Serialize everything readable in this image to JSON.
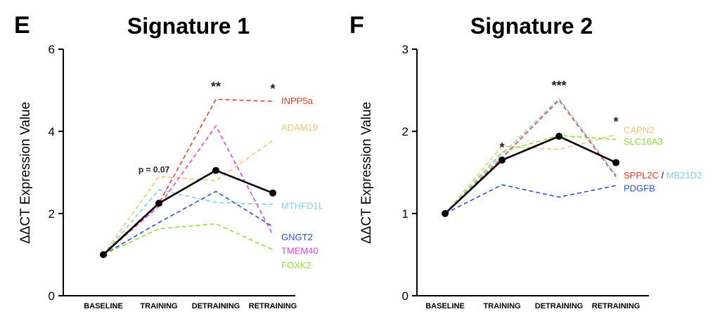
{
  "chart_data": [
    {
      "panel": "E",
      "type": "line",
      "title": "Signature 1",
      "ylabel": "ΔΔCT Expression Value",
      "xlabel": "",
      "categories": [
        "BASELINE",
        "TRAINING",
        "DETRAINING",
        "RETRAINING"
      ],
      "ylim": [
        0,
        6
      ],
      "yticks": [
        "0",
        "2",
        "4",
        "6"
      ],
      "grid": false,
      "series": [
        {
          "name": "INPP5a",
          "color": "#e8402a",
          "style": "dashed",
          "values": [
            1,
            2.25,
            4.78,
            4.73
          ]
        },
        {
          "name": "ADAM19",
          "color": "#f5c27a",
          "style": "dashed",
          "values": [
            1,
            2.9,
            2.8,
            3.78
          ]
        },
        {
          "name": "MTHFD1L",
          "color": "#7fcfef",
          "style": "dashed",
          "values": [
            1,
            2.58,
            2.27,
            2.22
          ]
        },
        {
          "name": "GNGT2",
          "color": "#2b4fd1",
          "style": "dashed",
          "values": [
            1,
            1.78,
            2.54,
            1.68
          ]
        },
        {
          "name": "TMEM40",
          "color": "#ee3fd0",
          "style": "dashed",
          "values": [
            1,
            2.18,
            4.13,
            1.48
          ]
        },
        {
          "name": "FOXK2",
          "color": "#8fe03a",
          "style": "dashed",
          "values": [
            1,
            1.63,
            1.75,
            1.12
          ]
        },
        {
          "name": "",
          "color": "#000000",
          "style": "solid",
          "markers": true,
          "values": [
            1,
            2.25,
            3.05,
            2.5
          ]
        }
      ],
      "series_labels": [
        {
          "text": "INPP5a",
          "color": "#e8402a",
          "y": 4.75
        },
        {
          "text": "ADAM19",
          "color": "#f5c27a",
          "y": 4.1
        },
        {
          "text": "MTHFD1L",
          "color": "#7fcfef",
          "y": 2.2
        },
        {
          "text": "GNGT2",
          "color": "#2b4fd1",
          "y": 1.44
        },
        {
          "text": "TMEM40",
          "color": "#ee3fd0",
          "y": 1.1
        },
        {
          "text": "FOXK2",
          "color": "#8fe03a",
          "y": 0.75
        }
      ],
      "annotations": [
        {
          "text": "p = 0.07",
          "category": "TRAINING",
          "y": 2.25,
          "kind": "note"
        },
        {
          "text": "**",
          "category": "DETRAINING",
          "y": 4.78,
          "kind": "sig"
        },
        {
          "text": "*",
          "category": "RETRAINING",
          "y": 4.73,
          "kind": "sig"
        }
      ]
    },
    {
      "panel": "F",
      "type": "line",
      "title": "Signature 2",
      "ylabel": "ΔΔCT Expression Value",
      "xlabel": "",
      "categories": [
        "BASELINE",
        "TRAINING",
        "DETRAINING",
        "RETRAINING"
      ],
      "ylim": [
        0,
        3
      ],
      "yticks": [
        "0",
        "1",
        "2",
        "3"
      ],
      "grid": false,
      "series": [
        {
          "name": "CAPN2",
          "color": "#f5c27a",
          "style": "dashed",
          "values": [
            1,
            1.82,
            1.78,
            1.96
          ]
        },
        {
          "name": "SLC16A3",
          "color": "#8fe03a",
          "style": "dashed",
          "values": [
            1,
            1.75,
            1.95,
            1.9
          ]
        },
        {
          "name": "SPPL2C",
          "color": "#e8402a",
          "style": "dashed",
          "values": [
            1,
            1.68,
            2.38,
            1.45
          ]
        },
        {
          "name": "MB21D2",
          "color": "#7fcfef",
          "style": "dashed",
          "values": [
            1,
            1.72,
            2.4,
            1.47
          ]
        },
        {
          "name": "PDGFB",
          "color": "#2b4fd1",
          "style": "dashed",
          "values": [
            1,
            1.35,
            1.2,
            1.34
          ]
        },
        {
          "name": "",
          "color": "#000000",
          "style": "solid",
          "markers": true,
          "values": [
            1,
            1.65,
            1.94,
            1.62
          ]
        }
      ],
      "series_labels": [
        {
          "text": "CAPN2",
          "color": "#f5c27a",
          "y": 2.02
        },
        {
          "text": "SLC16A3",
          "color": "#8fe03a",
          "y": 1.88
        },
        {
          "text": "SPPL2C",
          "color": "#e8402a",
          "y": 1.47,
          "suffix": "/",
          "suffix_color": "#000000",
          "then": "MB21D2",
          "then_color": "#7fcfef"
        },
        {
          "text": "PDGFB",
          "color": "#2b4fd1",
          "y": 1.31
        }
      ],
      "annotations": [
        {
          "text": "*",
          "category": "TRAINING",
          "y": 1.65,
          "kind": "sig"
        },
        {
          "text": "***",
          "category": "DETRAINING",
          "y": 2.4,
          "kind": "sig"
        },
        {
          "text": "*",
          "category": "RETRAINING",
          "y": 1.96,
          "kind": "sig"
        }
      ]
    }
  ]
}
